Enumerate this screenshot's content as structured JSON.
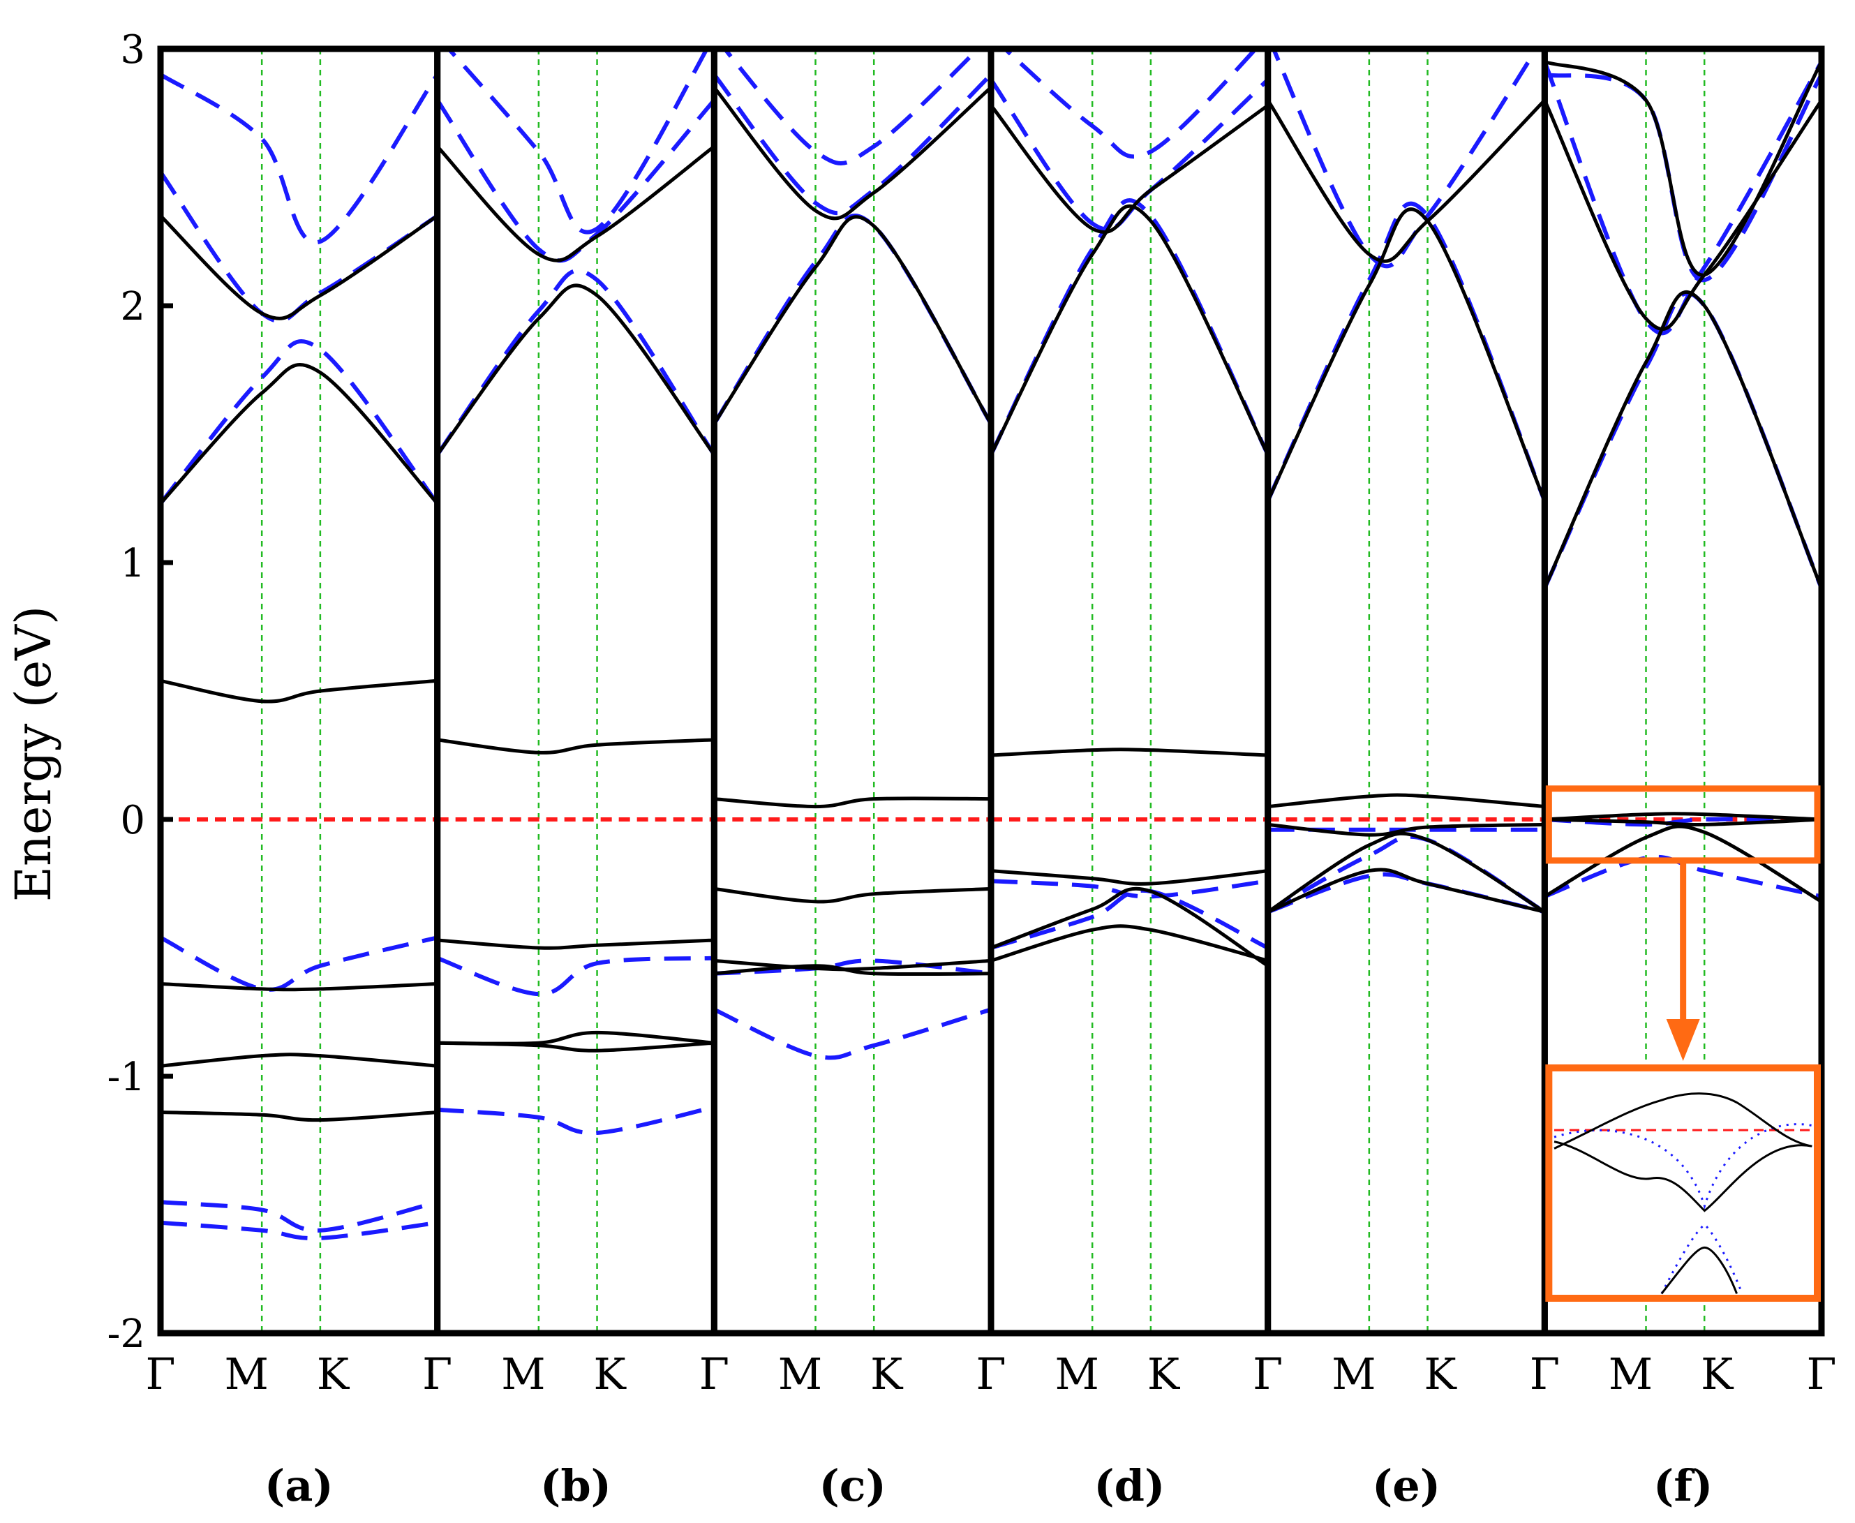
{
  "chart_data": {
    "type": "line",
    "ylabel": "Energy (eV)",
    "ylim": [
      -2,
      3
    ],
    "yticks": [
      "3",
      "2",
      "1",
      "0",
      "-1",
      "-2"
    ],
    "ytick_values": [
      3,
      2,
      1,
      0,
      -1,
      -2
    ],
    "fermi_level": 0,
    "kpath": [
      "Γ",
      "M",
      "K",
      "Γ"
    ],
    "kpath_positions": [
      0,
      0.366,
      0.577,
      1
    ],
    "series_styles": {
      "solid": {
        "color": "#000000",
        "dash": "none"
      },
      "dashed": {
        "color": "#1a1aff",
        "dash": "long"
      },
      "fermi": {
        "color": "#ff1a1a"
      },
      "kline": {
        "color": "#22bb22"
      },
      "inset": {
        "color": "#ff6a13"
      }
    },
    "panels": [
      {
        "label": "(a)",
        "solid": [
          [
            1.23,
            1.66,
            1.74,
            1.23
          ],
          [
            2.35,
            1.97,
            2.04,
            2.35
          ],
          [
            0.54,
            0.46,
            0.5,
            0.54
          ],
          [
            -0.64,
            -0.66,
            -0.66,
            -0.64
          ],
          [
            -0.96,
            -0.92,
            -0.92,
            -0.96
          ],
          [
            -1.14,
            -1.15,
            -1.17,
            -1.14
          ]
        ],
        "dashed": [
          [
            1.23,
            1.72,
            1.83,
            1.23
          ],
          [
            2.52,
            1.97,
            2.05,
            2.35
          ],
          [
            2.9,
            2.65,
            2.25,
            2.9
          ],
          [
            -0.46,
            -0.66,
            -0.57,
            -0.46
          ],
          [
            -1.49,
            -1.52,
            -1.6,
            -1.49
          ],
          [
            -1.57,
            -1.6,
            -1.63,
            -1.57
          ]
        ]
      },
      {
        "label": "(b)",
        "solid": [
          [
            1.42,
            1.95,
            2.04,
            1.42
          ],
          [
            2.62,
            2.2,
            2.27,
            2.62
          ],
          [
            0.31,
            0.26,
            0.29,
            0.31
          ],
          [
            -0.47,
            -0.5,
            -0.49,
            -0.47
          ],
          [
            -0.87,
            -0.87,
            -0.83,
            -0.87
          ],
          [
            -0.87,
            -0.88,
            -0.9,
            -0.87
          ]
        ],
        "dashed": [
          [
            1.42,
            1.98,
            2.1,
            1.42
          ],
          [
            2.8,
            2.22,
            2.28,
            2.8
          ],
          [
            3.05,
            2.6,
            2.3,
            3.05
          ],
          [
            -0.54,
            -0.68,
            -0.56,
            -0.54
          ],
          [
            -1.13,
            -1.16,
            -1.22,
            -1.12
          ]
        ]
      },
      {
        "label": "(c)",
        "solid": [
          [
            1.54,
            2.15,
            2.31,
            1.54
          ],
          [
            2.85,
            2.37,
            2.44,
            2.85
          ],
          [
            0.08,
            0.05,
            0.08,
            0.08
          ],
          [
            -0.27,
            -0.32,
            -0.29,
            -0.27
          ],
          [
            -0.55,
            -0.58,
            -0.58,
            -0.55
          ],
          [
            -0.6,
            -0.57,
            -0.6,
            -0.6
          ]
        ],
        "dashed": [
          [
            1.54,
            2.17,
            2.31,
            1.54
          ],
          [
            2.9,
            2.4,
            2.45,
            2.9
          ],
          [
            3.05,
            2.6,
            2.62,
            3.05
          ],
          [
            -0.6,
            -0.58,
            -0.55,
            -0.6
          ],
          [
            -0.74,
            -0.92,
            -0.88,
            -0.74
          ]
        ]
      },
      {
        "label": "(d)",
        "solid": [
          [
            1.42,
            2.2,
            2.33,
            1.42
          ],
          [
            2.78,
            2.3,
            2.45,
            2.78
          ],
          [
            0.25,
            0.27,
            0.27,
            0.25
          ],
          [
            -0.2,
            -0.23,
            -0.25,
            -0.2
          ],
          [
            -0.5,
            -0.35,
            -0.28,
            -0.57
          ],
          [
            -0.55,
            -0.43,
            -0.43,
            -0.55
          ]
        ],
        "dashed": [
          [
            1.42,
            2.22,
            2.35,
            1.42
          ],
          [
            2.88,
            2.32,
            2.45,
            2.88
          ],
          [
            3.05,
            2.7,
            2.6,
            3.05
          ],
          [
            -0.24,
            -0.26,
            -0.3,
            -0.24
          ],
          [
            -0.5,
            -0.38,
            -0.28,
            -0.5
          ]
        ]
      },
      {
        "label": "(e)",
        "solid": [
          [
            1.24,
            2.08,
            2.33,
            1.24
          ],
          [
            2.8,
            2.2,
            2.33,
            2.8
          ],
          [
            0.05,
            0.09,
            0.09,
            0.05
          ],
          [
            -0.02,
            -0.06,
            -0.03,
            -0.02
          ],
          [
            -0.36,
            -0.2,
            -0.25,
            -0.36
          ],
          [
            -0.36,
            -0.1,
            -0.08,
            -0.36
          ]
        ],
        "dashed": [
          [
            1.24,
            2.1,
            2.35,
            1.24
          ],
          [
            3.05,
            2.2,
            2.35,
            3.05
          ],
          [
            -0.04,
            -0.04,
            -0.04,
            -0.04
          ],
          [
            -0.36,
            -0.14,
            -0.08,
            -0.36
          ],
          [
            -0.36,
            -0.22,
            -0.25,
            -0.36
          ]
        ]
      },
      {
        "label": "(f)",
        "solid": [
          [
            0.9,
            1.78,
            2.0,
            0.9
          ],
          [
            2.8,
            1.95,
            2.12,
            2.8
          ],
          [
            2.95,
            2.8,
            2.12,
            2.95
          ],
          [
            0.0,
            0.02,
            0.02,
            0.0
          ],
          [
            0.0,
            -0.01,
            -0.02,
            0.0
          ],
          [
            -0.3,
            -0.07,
            -0.05,
            -0.32
          ]
        ],
        "dashed": [
          [
            0.9,
            1.76,
            2.0,
            0.9
          ],
          [
            2.95,
            1.94,
            2.15,
            2.95
          ],
          [
            2.9,
            2.8,
            2.1,
            2.9
          ],
          [
            0.0,
            -0.02,
            0.0,
            0.0
          ],
          [
            -0.3,
            -0.15,
            -0.2,
            -0.3
          ]
        ]
      }
    ]
  }
}
